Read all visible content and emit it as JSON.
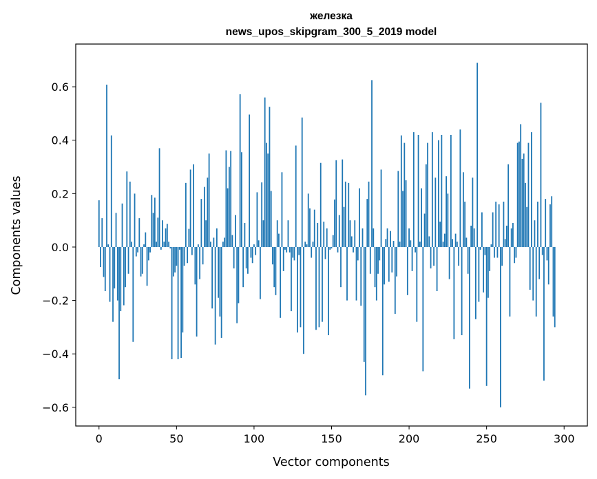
{
  "chart_data": {
    "type": "bar",
    "title": "железка",
    "subtitle": "news_upos_skipgram_300_5_2019 model",
    "xlabel": "Vector components",
    "ylabel": "Components values",
    "xlim": [
      -15,
      315
    ],
    "ylim": [
      -0.67,
      0.76
    ],
    "xticks": [
      0,
      50,
      100,
      150,
      200,
      250,
      300
    ],
    "yticks": [
      -0.6,
      -0.4,
      -0.2,
      0.0,
      0.2,
      0.4,
      0.6
    ],
    "xtick_labels": [
      "0",
      "50",
      "100",
      "150",
      "200",
      "250",
      "300"
    ],
    "ytick_labels": [
      "−0.6",
      "−0.4",
      "−0.2",
      "0.0",
      "0.2",
      "0.4",
      "0.6"
    ],
    "grid": false,
    "bar_color": "#1f77b4",
    "values": [
      0.175,
      -0.075,
      0.108,
      -0.112,
      -0.165,
      0.608,
      0.01,
      -0.205,
      0.418,
      -0.28,
      -0.155,
      0.128,
      -0.2,
      -0.495,
      -0.24,
      0.163,
      -0.218,
      -0.15,
      0.283,
      -0.1,
      0.245,
      0.02,
      -0.355,
      0.2,
      -0.035,
      -0.02,
      0.108,
      -0.11,
      -0.1,
      0.01,
      0.055,
      -0.145,
      -0.05,
      -0.02,
      0.195,
      0.128,
      0.185,
      0.02,
      0.11,
      0.37,
      -0.01,
      0.1,
      0.02,
      0.07,
      0.087,
      0.02,
      -0.005,
      -0.42,
      -0.11,
      -0.095,
      -0.07,
      -0.42,
      -0.01,
      -0.415,
      -0.32,
      -0.07,
      0.24,
      -0.06,
      0.068,
      0.29,
      -0.03,
      0.31,
      -0.14,
      -0.335,
      0.01,
      -0.12,
      0.18,
      -0.065,
      0.225,
      0.1,
      0.26,
      0.35,
      0.02,
      -0.23,
      0.035,
      -0.365,
      0.07,
      -0.19,
      -0.26,
      -0.34,
      0.02,
      0.035,
      0.362,
      0.22,
      0.3,
      0.36,
      0.045,
      -0.08,
      0.12,
      -0.285,
      -0.21,
      0.572,
      0.355,
      -0.15,
      0.09,
      -0.08,
      -0.1,
      0.496,
      -0.04,
      -0.06,
      0.01,
      -0.03,
      0.205,
      0.025,
      -0.195,
      0.242,
      0.1,
      0.56,
      0.39,
      0.35,
      0.525,
      0.21,
      -0.065,
      -0.15,
      -0.18,
      0.1,
      0.05,
      -0.265,
      0.28,
      -0.09,
      -0.01,
      -0.02,
      0.1,
      -0.02,
      -0.24,
      -0.04,
      -0.05,
      0.38,
      -0.32,
      -0.03,
      -0.3,
      0.485,
      -0.4,
      0.02,
      0.01,
      0.2,
      0.145,
      -0.04,
      0.02,
      0.14,
      -0.31,
      0.09,
      -0.3,
      0.315,
      -0.28,
      0.095,
      -0.045,
      0.07,
      -0.33,
      -0.01,
      -0.005,
      0.045,
      0.178,
      0.325,
      -0.02,
      0.12,
      -0.15,
      0.328,
      0.15,
      0.245,
      -0.2,
      0.24,
      0.1,
      0.04,
      -0.02,
      0.1,
      -0.2,
      -0.05,
      0.22,
      -0.22,
      0.07,
      -0.43,
      -0.555,
      0.18,
      0.245,
      -0.1,
      0.625,
      0.07,
      -0.15,
      -0.2,
      -0.1,
      -0.05,
      0.29,
      -0.48,
      -0.14,
      0.03,
      0.07,
      -0.13,
      0.06,
      -0.095,
      0.023,
      -0.25,
      -0.11,
      0.285,
      0.02,
      0.418,
      0.21,
      0.39,
      0.25,
      -0.18,
      0.07,
      0.025,
      -0.09,
      0.43,
      -0.02,
      -0.28,
      0.42,
      0.02,
      0.22,
      -0.465,
      0.125,
      0.31,
      0.39,
      0.04,
      -0.08,
      0.43,
      -0.07,
      0.26,
      -0.165,
      0.4,
      0.095,
      0.42,
      0.02,
      0.05,
      0.265,
      0.2,
      -0.12,
      0.42,
      0.03,
      -0.345,
      0.05,
      0.02,
      -0.07,
      0.44,
      -0.33,
      0.28,
      0.17,
      0.035,
      -0.1,
      -0.53,
      0.08,
      0.26,
      0.07,
      -0.27,
      0.69,
      -0.205,
      -0.01,
      0.13,
      -0.17,
      -0.03,
      -0.52,
      -0.19,
      -0.09,
      0.01,
      0.13,
      -0.04,
      0.17,
      -0.04,
      0.16,
      -0.6,
      -0.07,
      0.17,
      0.03,
      0.08,
      0.31,
      -0.26,
      0.07,
      0.09,
      -0.06,
      -0.04,
      0.39,
      0.395,
      0.46,
      0.33,
      0.35,
      0.24,
      0.15,
      0.39,
      -0.16,
      0.43,
      -0.2,
      0.1,
      -0.26,
      0.17,
      -0.12,
      0.54,
      -0.03,
      -0.5,
      0.18,
      -0.05,
      -0.14,
      0.16,
      0.19,
      -0.26,
      -0.3
    ]
  }
}
